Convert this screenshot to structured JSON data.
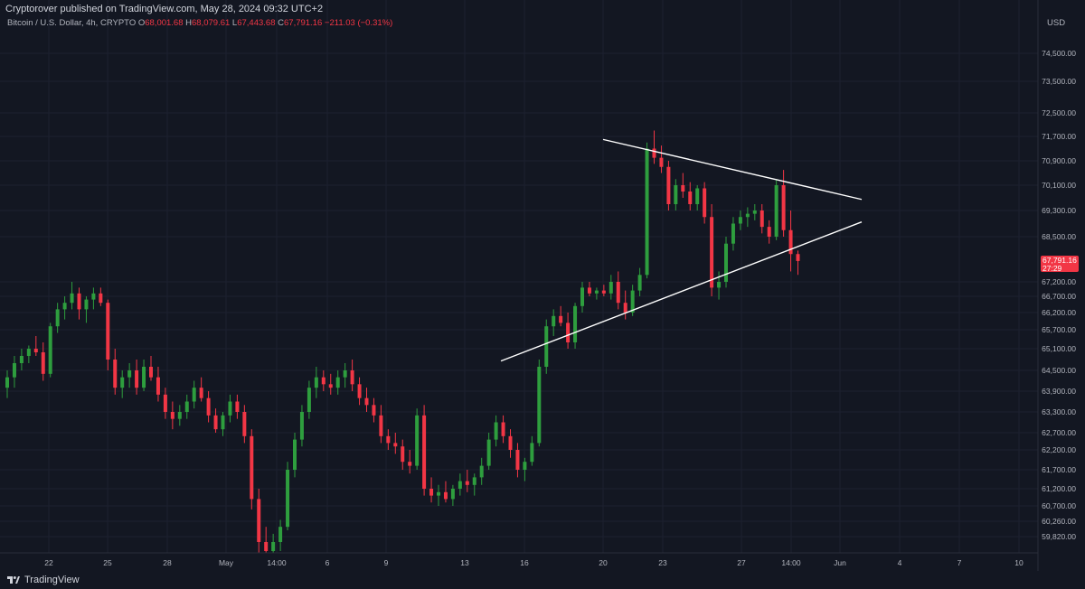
{
  "publish_line": "Cryptorover published on TradingView.com, May 28, 2024 09:32 UTC+2",
  "legend": {
    "symbol": "Bitcoin / U.S. Dollar, 4h, CRYPTO",
    "o_label": "O",
    "o": "68,001.68",
    "h_label": "H",
    "h": "68,079.61",
    "l_label": "L",
    "l": "67,443.68",
    "c_label": "C",
    "c": "67,791.16",
    "change": "−211.03 (−0.31%)"
  },
  "price_label": {
    "price": "67,791.16",
    "countdown": "27:29"
  },
  "footer": {
    "brand": "TradingView"
  },
  "colors": {
    "background": "#131722",
    "up": "#26a69a",
    "up_bright": "#2e9e3e",
    "down": "#f23645",
    "axis_text": "#b2b5be",
    "trendline": "#ffffff"
  },
  "chart_data": {
    "type": "candlestick",
    "currency": "USD",
    "timeframe": "4h",
    "y_ticks": [
      "74,500.00",
      "73,500.00",
      "72,500.00",
      "71,700.00",
      "70,900.00",
      "70,100.00",
      "69,300.00",
      "68,500.00",
      "67,200.00",
      "66,700.00",
      "66,200.00",
      "65,700.00",
      "65,100.00",
      "64,500.00",
      "63,900.00",
      "63,300.00",
      "62,700.00",
      "62,200.00",
      "61,700.00",
      "61,200.00",
      "60,700.00",
      "60,260.00",
      "59,820.00",
      "59,380.00"
    ],
    "x_ticks": [
      "22",
      "25",
      "28",
      "May",
      "14:00",
      "6",
      "9",
      "13",
      "16",
      "20",
      "23",
      "27",
      "14:00",
      "Jun",
      "4",
      "7",
      "10"
    ],
    "ohlc": [
      [
        64000,
        64500,
        63700,
        64300
      ],
      [
        64300,
        64900,
        64000,
        64700
      ],
      [
        64700,
        65100,
        64500,
        64900
      ],
      [
        64900,
        65200,
        64700,
        65100
      ],
      [
        65100,
        65500,
        64900,
        65000
      ],
      [
        65000,
        65300,
        64200,
        64400
      ],
      [
        64400,
        65900,
        64300,
        65800
      ],
      [
        65800,
        66500,
        65600,
        66300
      ],
      [
        66300,
        66700,
        66000,
        66500
      ],
      [
        66500,
        67200,
        66300,
        66800
      ],
      [
        66800,
        67000,
        66000,
        66300
      ],
      [
        66300,
        66700,
        65900,
        66600
      ],
      [
        66600,
        67000,
        66300,
        66800
      ],
      [
        66800,
        67000,
        66400,
        66500
      ],
      [
        66500,
        66600,
        64500,
        64800
      ],
      [
        64800,
        65100,
        63800,
        64000
      ],
      [
        64000,
        64500,
        63700,
        64300
      ],
      [
        64300,
        64700,
        64000,
        64500
      ],
      [
        64500,
        64800,
        63800,
        64000
      ],
      [
        64000,
        64800,
        63900,
        64600
      ],
      [
        64600,
        64900,
        64200,
        64300
      ],
      [
        64300,
        64600,
        63600,
        63800
      ],
      [
        63800,
        64000,
        63100,
        63300
      ],
      [
        63300,
        63600,
        62800,
        63100
      ],
      [
        63100,
        63500,
        62900,
        63300
      ],
      [
        63300,
        63800,
        63100,
        63600
      ],
      [
        63600,
        64200,
        63400,
        64000
      ],
      [
        64000,
        64300,
        63600,
        63700
      ],
      [
        63700,
        63900,
        63000,
        63200
      ],
      [
        63200,
        63400,
        62700,
        62800
      ],
      [
        62800,
        63300,
        62600,
        63200
      ],
      [
        63200,
        63800,
        63000,
        63600
      ],
      [
        63600,
        63800,
        63100,
        63300
      ],
      [
        63300,
        63500,
        62400,
        62600
      ],
      [
        62600,
        62800,
        60600,
        60900
      ],
      [
        60900,
        61200,
        59400,
        59700
      ],
      [
        59700,
        60100,
        59300,
        59500
      ],
      [
        59500,
        59900,
        59300,
        59700
      ],
      [
        59700,
        60300,
        59500,
        60100
      ],
      [
        60100,
        61900,
        60000,
        61700
      ],
      [
        61700,
        62700,
        61500,
        62500
      ],
      [
        62500,
        63500,
        62300,
        63300
      ],
      [
        63300,
        64200,
        63100,
        64000
      ],
      [
        64000,
        64600,
        63700,
        64300
      ],
      [
        64300,
        64500,
        63900,
        64100
      ],
      [
        64100,
        64400,
        63800,
        64000
      ],
      [
        64000,
        64500,
        63800,
        64300
      ],
      [
        64300,
        64700,
        64000,
        64500
      ],
      [
        64500,
        64800,
        63900,
        64100
      ],
      [
        64100,
        64300,
        63500,
        63700
      ],
      [
        63700,
        64000,
        63300,
        63500
      ],
      [
        63500,
        63700,
        63000,
        63200
      ],
      [
        63200,
        63500,
        62400,
        62600
      ],
      [
        62600,
        62800,
        62200,
        62400
      ],
      [
        62400,
        62700,
        62100,
        62300
      ],
      [
        62300,
        62500,
        61700,
        61900
      ],
      [
        61900,
        62200,
        61600,
        61800
      ],
      [
        61800,
        63400,
        61700,
        63200
      ],
      [
        63200,
        63500,
        61000,
        61200
      ],
      [
        61200,
        61500,
        60800,
        61000
      ],
      [
        61000,
        61300,
        60700,
        61100
      ],
      [
        61100,
        61400,
        60800,
        60900
      ],
      [
        60900,
        61300,
        60700,
        61200
      ],
      [
        61200,
        61600,
        61000,
        61400
      ],
      [
        61400,
        61700,
        61100,
        61300
      ],
      [
        61300,
        61600,
        61000,
        61500
      ],
      [
        61500,
        62000,
        61300,
        61800
      ],
      [
        61800,
        62700,
        61700,
        62500
      ],
      [
        62500,
        63200,
        62300,
        63000
      ],
      [
        63000,
        63200,
        62400,
        62600
      ],
      [
        62600,
        62800,
        62000,
        62200
      ],
      [
        62200,
        62400,
        61500,
        61700
      ],
      [
        61700,
        62000,
        61400,
        61900
      ],
      [
        61900,
        62600,
        61800,
        62400
      ],
      [
        62400,
        64800,
        62300,
        64600
      ],
      [
        64600,
        66000,
        64400,
        65800
      ],
      [
        65800,
        66300,
        65500,
        66100
      ],
      [
        66100,
        66400,
        65800,
        65900
      ],
      [
        65900,
        66200,
        65100,
        65300
      ],
      [
        65300,
        66500,
        65100,
        66400
      ],
      [
        66400,
        67200,
        66200,
        67000
      ],
      [
        67000,
        67200,
        66700,
        66800
      ],
      [
        66800,
        67000,
        66600,
        66900
      ],
      [
        66900,
        67100,
        66700,
        66800
      ],
      [
        66800,
        67400,
        66600,
        67200
      ],
      [
        67200,
        67500,
        66300,
        66500
      ],
      [
        66500,
        66900,
        66000,
        66200
      ],
      [
        66200,
        67100,
        66100,
        66900
      ],
      [
        66900,
        67600,
        66700,
        67400
      ],
      [
        67400,
        71500,
        67300,
        71300
      ],
      [
        71300,
        71900,
        70800,
        71000
      ],
      [
        71000,
        71400,
        70500,
        70700
      ],
      [
        70700,
        70900,
        69300,
        69500
      ],
      [
        69500,
        70300,
        69300,
        70100
      ],
      [
        70100,
        70500,
        69700,
        69900
      ],
      [
        69900,
        70200,
        69300,
        69500
      ],
      [
        69500,
        70100,
        69300,
        70000
      ],
      [
        70000,
        70200,
        68900,
        69100
      ],
      [
        69100,
        69500,
        66700,
        67000
      ],
      [
        67000,
        67500,
        66600,
        67200
      ],
      [
        67200,
        68500,
        67000,
        68300
      ],
      [
        68300,
        69100,
        68100,
        68900
      ],
      [
        68900,
        69300,
        68700,
        69100
      ],
      [
        69100,
        69400,
        68800,
        69200
      ],
      [
        69200,
        69500,
        69000,
        69300
      ],
      [
        69300,
        69500,
        68600,
        68800
      ],
      [
        68800,
        69000,
        68300,
        68500
      ],
      [
        68500,
        70300,
        68400,
        70100
      ],
      [
        70100,
        70600,
        68500,
        68700
      ],
      [
        68700,
        69300,
        67500,
        68000
      ],
      [
        68000,
        68100,
        67400,
        67800
      ]
    ],
    "trendlines": [
      {
        "name": "upper",
        "from": [
          71600,
          "May 20"
        ],
        "to": [
          69600,
          "Jun 1"
        ]
      },
      {
        "name": "lower",
        "from": [
          64700,
          "May 15"
        ],
        "to": [
          68900,
          "Jun 1"
        ]
      }
    ]
  }
}
